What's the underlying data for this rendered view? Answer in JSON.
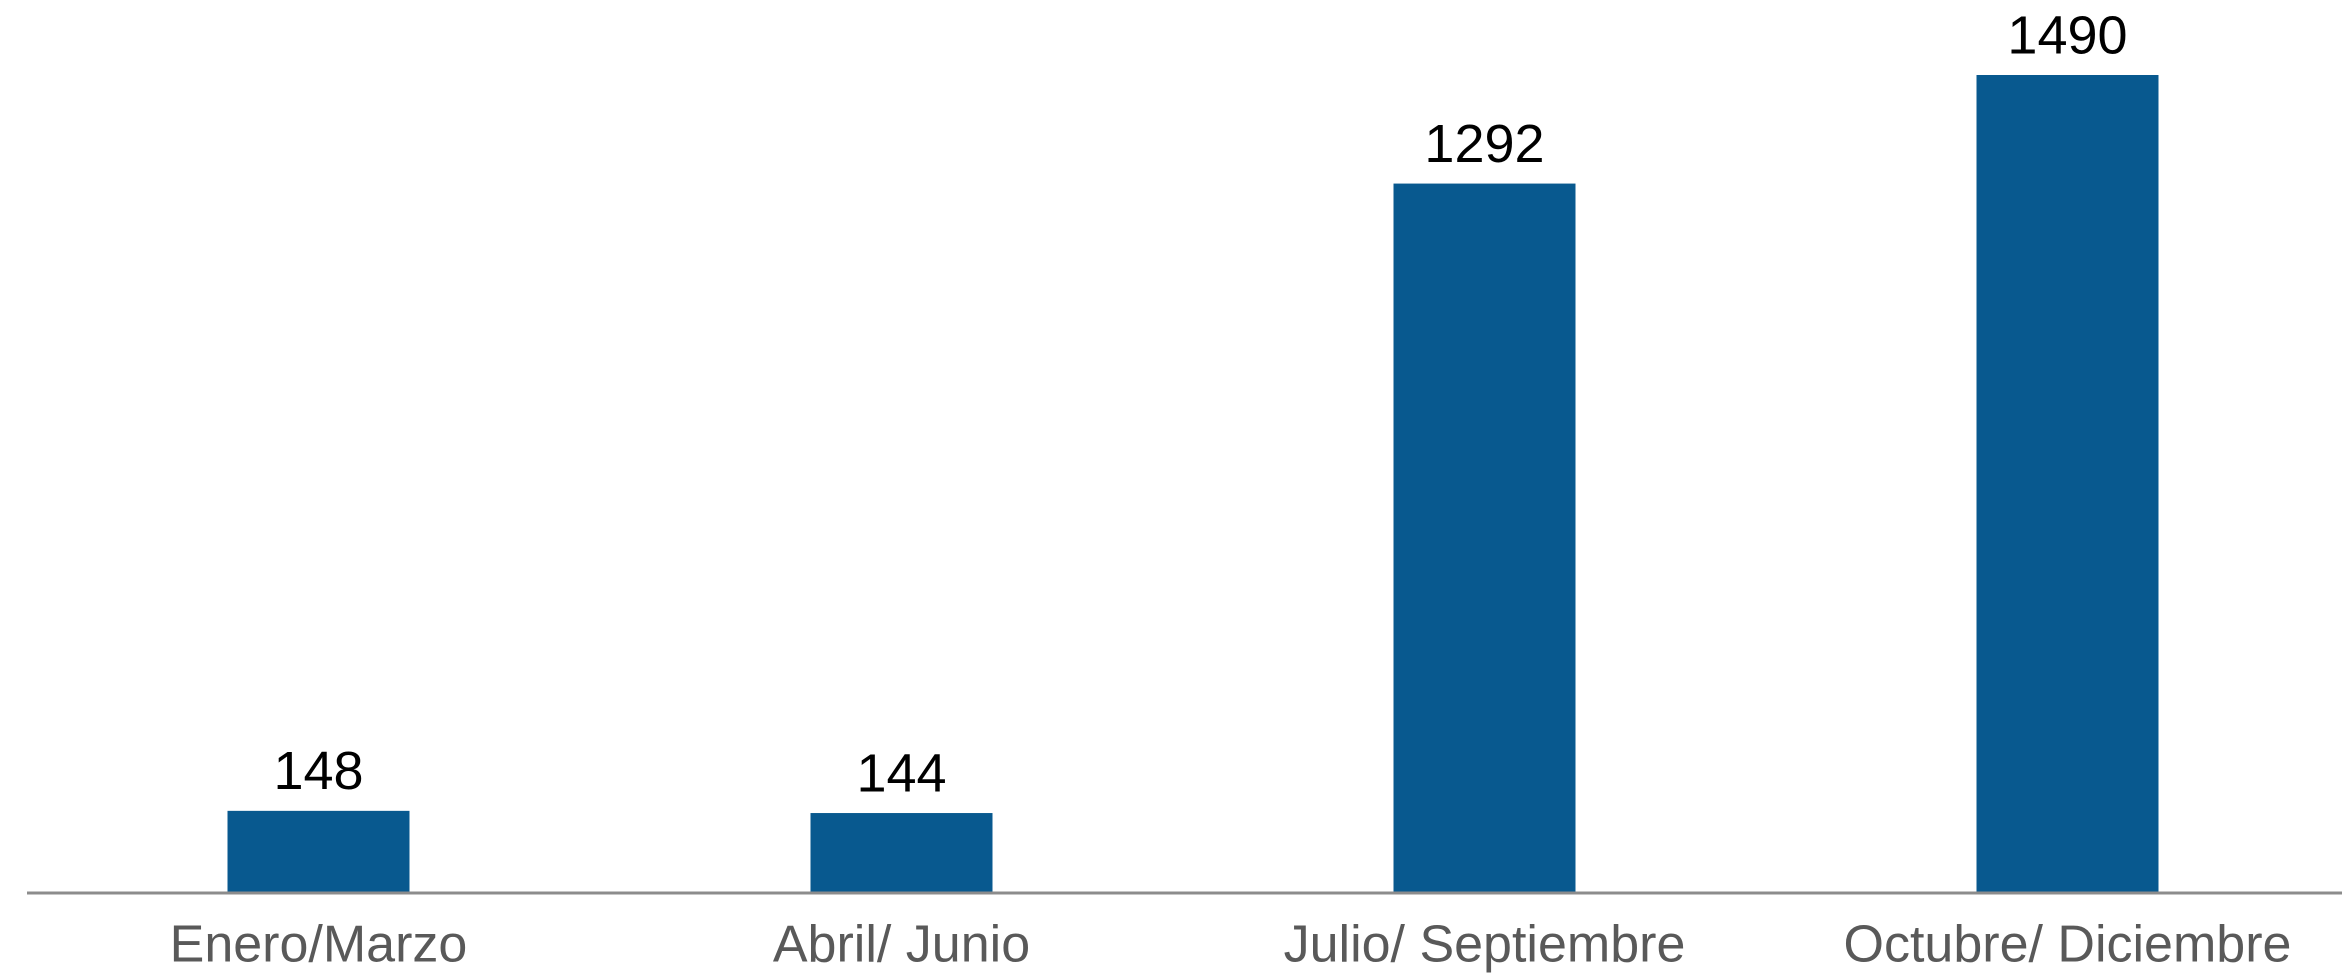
{
  "chart_data": {
    "type": "bar",
    "categories": [
      "Enero/Marzo",
      "Abril/ Junio",
      "Julio/ Septiembre",
      "Octubre/ Diciembre"
    ],
    "values": [
      148,
      144,
      1292,
      1490
    ],
    "color": "#08598f"
  }
}
